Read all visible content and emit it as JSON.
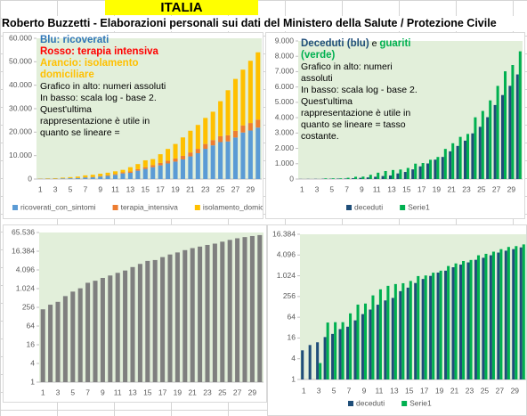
{
  "header": {
    "title": "ITALIA",
    "subtitle": "Roberto Buzzetti - Elaborazioni personali sui dati del Ministero della Salute / Protezione Civile"
  },
  "chart_data": [
    {
      "type": "bar",
      "stacked": true,
      "plot_color": "#e2efda",
      "categories": [
        "1",
        null,
        "3",
        null,
        "5",
        null,
        "7",
        null,
        "9",
        null,
        "11",
        null,
        "13",
        null,
        "15",
        null,
        "17",
        null,
        "19",
        null,
        "21",
        null,
        "23",
        null,
        "25",
        null,
        "27",
        null,
        "29",
        null
      ],
      "series": [
        {
          "name": "ricoverati_con_sintomi",
          "color": "#5b9bd5",
          "values": [
            101,
            114,
            128,
            248,
            345,
            401,
            639,
            742,
            1034,
            1346,
            1790,
            2394,
            2651,
            3557,
            4316,
            5038,
            5838,
            6650,
            7426,
            8372,
            9663,
            11025,
            12894,
            14363,
            15757,
            16020,
            17708,
            19846,
            20692,
            21937
          ]
        },
        {
          "name": "terapia_intensiva",
          "color": "#ed7d31",
          "values": [
            26,
            35,
            36,
            56,
            64,
            105,
            140,
            166,
            229,
            295,
            351,
            462,
            567,
            650,
            733,
            877,
            1028,
            1153,
            1328,
            1518,
            1672,
            1851,
            2060,
            2257,
            2498,
            2655,
            2857,
            3009,
            3204,
            3396
          ]
        },
        {
          "name": "isolamento_domiciliare",
          "color": "#ffc000",
          "values": [
            94,
            162,
            221,
            284,
            412,
            543,
            798,
            927,
            1000,
            1065,
            1155,
            1060,
            1843,
            2180,
            2936,
            2599,
            3724,
            5036,
            6201,
            7860,
            9268,
            10197,
            11108,
            12090,
            14935,
            19185,
            22116,
            23783,
            26522,
            28697
          ]
        }
      ],
      "ylim": [
        0,
        60000
      ],
      "yticks": [
        0,
        {
          "value": 10000,
          "label": "10.000"
        },
        {
          "value": 20000,
          "label": "20.000"
        },
        {
          "value": 30000,
          "label": "30.000"
        },
        {
          "value": 40000,
          "label": "40.000"
        },
        {
          "value": 50000,
          "label": "50.000"
        },
        {
          "value": 60000,
          "label": "60.000"
        }
      ],
      "annotations": [
        [
          {
            "text": "Blu: ricoverati",
            "color": "#2e75b6",
            "bold": true
          }
        ],
        [
          {
            "text": "Rosso: terapia intensiva",
            "color": "#ff0000",
            "bold": true
          }
        ],
        [
          {
            "text": "Arancio: isolamento domiciliare",
            "color": "#ffc000",
            "bold": true
          }
        ],
        [
          {
            "text": "Grafico in alto: numeri assoluti",
            "color": "#000000",
            "bold": false
          }
        ],
        [
          {
            "text": "In basso: scala log - base 2.",
            "color": "#000000",
            "bold": false
          }
        ],
        [
          {
            "text": "Quest'ultima rappresentazione è utile in quanto se lineare =",
            "color": "#000000",
            "bold": false
          }
        ]
      ]
    },
    {
      "type": "bar",
      "stacked": false,
      "plot_color": "#e2efda",
      "categories": [
        "1",
        null,
        "3",
        null,
        "5",
        null,
        "7",
        null,
        "9",
        null,
        "11",
        null,
        "13",
        null,
        "15",
        null,
        "17",
        null,
        "19",
        null,
        "21",
        null,
        "23",
        null,
        "25",
        null,
        "27",
        null,
        "29",
        null
      ],
      "series": [
        {
          "name": "deceduti",
          "color": "#1f4e79",
          "values": [
            7,
            10,
            12,
            17,
            21,
            29,
            34,
            52,
            79,
            107,
            148,
            197,
            233,
            366,
            463,
            631,
            827,
            1016,
            1266,
            1441,
            1809,
            2158,
            2503,
            2978,
            3405,
            4032,
            4825,
            5476,
            6077,
            6820
          ]
        },
        {
          "name": "Serie1",
          "color": "#00b050",
          "values": [
            1,
            1,
            3,
            45,
            46,
            46,
            83,
            149,
            160,
            276,
            414,
            523,
            589,
            622,
            724,
            1004,
            1045,
            1258,
            1439,
            1966,
            2335,
            2749,
            2941,
            4025,
            4440,
            5129,
            6072,
            7024,
            7432,
            8326
          ]
        }
      ],
      "ylim": [
        0,
        9000
      ],
      "yticks": [
        0,
        {
          "value": 1000,
          "label": "1.000"
        },
        {
          "value": 2000,
          "label": "2.000"
        },
        {
          "value": 3000,
          "label": "3.000"
        },
        {
          "value": 4000,
          "label": "4.000"
        },
        {
          "value": 5000,
          "label": "5.000"
        },
        {
          "value": 6000,
          "label": "6.000"
        },
        {
          "value": 7000,
          "label": "7.000"
        },
        {
          "value": 8000,
          "label": "8.000"
        },
        {
          "value": 9000,
          "label": "9.000"
        }
      ],
      "annotations": [
        [
          {
            "text": "Deceduti (blu)",
            "color": "#1f4e79",
            "bold": true
          },
          {
            "text": "e",
            "color": "#000000",
            "bold": false
          },
          {
            "text": "guariti (verde)",
            "color": "#00b050",
            "bold": true
          }
        ],
        [
          {
            "text": "Grafico in alto: numeri assoluti",
            "color": "#000000",
            "bold": false
          }
        ],
        [
          {
            "text": "In basso: scala log - base 2.",
            "color": "#000000",
            "bold": false
          }
        ],
        [
          {
            "text": "Quest'ultima rappresentazione è utile in quanto se lineare = tasso costante.",
            "color": "#000000",
            "bold": false
          }
        ]
      ]
    },
    {
      "type": "bar",
      "stacked": false,
      "log_scale": true,
      "log_base": 2,
      "plot_color": "#e2efda",
      "categories": [
        "1",
        null,
        "3",
        null,
        "5",
        null,
        "7",
        null,
        "9",
        null,
        "11",
        null,
        "13",
        null,
        "15",
        null,
        "17",
        null,
        "19",
        null,
        "21",
        null,
        "23",
        null,
        "25",
        null,
        "27",
        null,
        "29",
        null
      ],
      "series": [
        {
          "color": "#7f7f7f",
          "values": [
            221,
            311,
            385,
            588,
            821,
            1049,
            1577,
            1835,
            2263,
            2706,
            3296,
            3916,
            5061,
            6387,
            7985,
            8514,
            10590,
            12839,
            14955,
            17750,
            20603,
            23073,
            26062,
            28710,
            33190,
            37860,
            42681,
            46638,
            50418,
            54030
          ]
        }
      ],
      "ylim": [
        1,
        65536
      ],
      "yticks": [
        1,
        4,
        16,
        64,
        256,
        {
          "value": 1024,
          "label": "1.024"
        },
        {
          "value": 4096,
          "label": "4.096"
        },
        {
          "value": 16384,
          "label": "16.384"
        },
        {
          "value": 65536,
          "label": "65.536"
        }
      ]
    },
    {
      "type": "bar",
      "stacked": false,
      "log_scale": true,
      "log_base": 2,
      "plot_color": "#e2efda",
      "categories": [
        "1",
        null,
        "3",
        null,
        "5",
        null,
        "7",
        null,
        "9",
        null,
        "11",
        null,
        "13",
        null,
        "15",
        null,
        "17",
        null,
        "19",
        null,
        "21",
        null,
        "23",
        null,
        "25",
        null,
        "27",
        null,
        "29",
        null
      ],
      "series": [
        {
          "name": "deceduti",
          "color": "#1f4e79",
          "values": [
            7,
            10,
            12,
            17,
            21,
            29,
            34,
            52,
            79,
            107,
            148,
            197,
            233,
            366,
            463,
            631,
            827,
            1016,
            1266,
            1441,
            1809,
            2158,
            2503,
            2978,
            3405,
            4032,
            4825,
            5476,
            6077,
            6820
          ]
        },
        {
          "name": "Serie1",
          "color": "#00b050",
          "values": [
            1,
            1,
            3,
            45,
            46,
            46,
            83,
            149,
            160,
            276,
            414,
            523,
            589,
            622,
            724,
            1004,
            1045,
            1258,
            1439,
            1966,
            2335,
            2749,
            2941,
            4025,
            4440,
            5129,
            6072,
            7024,
            7432,
            8326
          ]
        }
      ],
      "ylim": [
        1,
        16384
      ],
      "yticks": [
        1,
        4,
        16,
        64,
        256,
        {
          "value": 1024,
          "label": "1.024"
        },
        {
          "value": 4096,
          "label": "4.096"
        },
        {
          "value": 16384,
          "label": "16.384"
        }
      ]
    }
  ]
}
